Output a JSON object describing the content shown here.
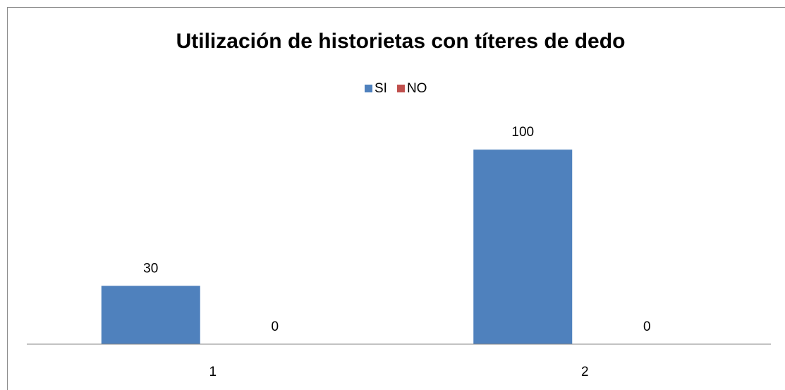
{
  "chart_data": {
    "type": "bar",
    "title": "Utilización de historietas con títeres de dedo",
    "categories": [
      "1",
      "2"
    ],
    "series": [
      {
        "name": "SI",
        "color": "#4f81bd",
        "values": [
          30,
          100
        ]
      },
      {
        "name": "NO",
        "color": "#c0504d",
        "values": [
          0,
          0
        ]
      }
    ],
    "ylim": [
      0,
      120
    ],
    "legend": "top",
    "grid": false
  }
}
